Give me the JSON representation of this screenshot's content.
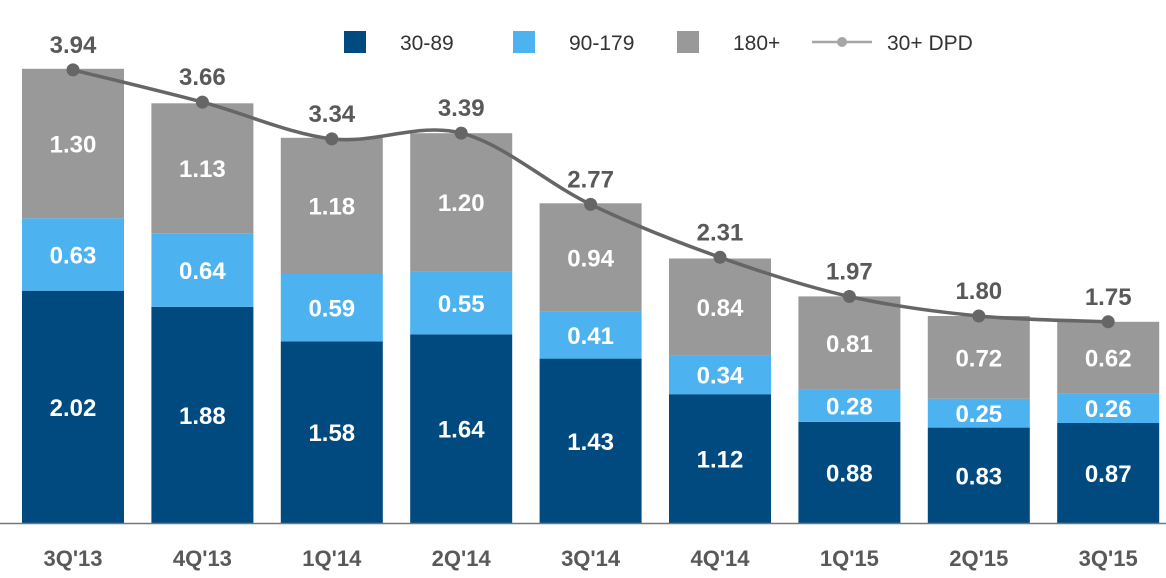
{
  "chart_data": {
    "type": "bar",
    "stacked": true,
    "title": "",
    "xlabel": "",
    "ylabel": "",
    "ylim": [
      0,
      4.5
    ],
    "grid": false,
    "legend_position": "top",
    "categories": [
      "3Q'13",
      "4Q'13",
      "1Q'14",
      "2Q'14",
      "3Q'14",
      "4Q'14",
      "1Q'15",
      "2Q'15",
      "3Q'15"
    ],
    "series": [
      {
        "name": "30-89",
        "type": "bar",
        "color": "#004A80",
        "values": [
          2.02,
          1.88,
          1.58,
          1.64,
          1.43,
          1.12,
          0.88,
          0.83,
          0.87
        ],
        "labels": [
          "2.02",
          "1.88",
          "1.58",
          "1.64",
          "1.43",
          "1.12",
          "0.88",
          "0.83",
          "0.87"
        ]
      },
      {
        "name": "90-179",
        "type": "bar",
        "color": "#4DB3F0",
        "values": [
          0.63,
          0.64,
          0.59,
          0.55,
          0.41,
          0.34,
          0.28,
          0.25,
          0.26
        ],
        "labels": [
          "0.63",
          "0.64",
          "0.59",
          "0.55",
          "0.41",
          "0.34",
          "0.28",
          "0.25",
          "0.26"
        ]
      },
      {
        "name": "180+",
        "type": "bar",
        "color": "#999999",
        "values": [
          1.3,
          1.13,
          1.18,
          1.2,
          0.94,
          0.84,
          0.81,
          0.72,
          0.62
        ],
        "labels": [
          "1.30",
          "1.13",
          "1.18",
          "1.20",
          "0.94",
          "0.84",
          "0.81",
          "0.72",
          "0.62"
        ]
      },
      {
        "name": "30+ DPD",
        "type": "line",
        "color": "#666666",
        "values": [
          3.94,
          3.66,
          3.34,
          3.39,
          2.77,
          2.31,
          1.97,
          1.8,
          1.75
        ],
        "labels": [
          "3.94",
          "3.66",
          "3.34",
          "3.39",
          "2.77",
          "2.31",
          "1.97",
          "1.80",
          "1.75"
        ]
      }
    ]
  }
}
